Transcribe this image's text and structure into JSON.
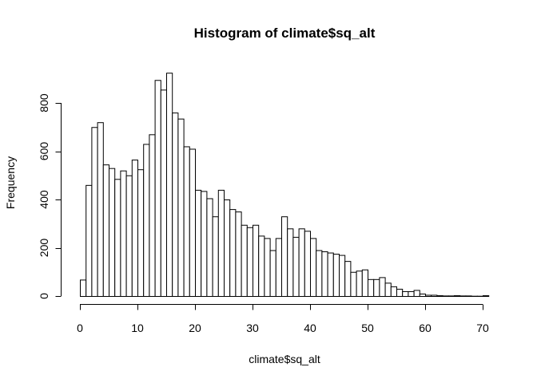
{
  "chart_data": {
    "type": "bar",
    "title": "Histogram of climate$sq_alt",
    "xlabel": "climate$sq_alt",
    "ylabel": "Frequency",
    "xlim": [
      0,
      71
    ],
    "ylim": [
      0,
      900
    ],
    "bin_width": 1,
    "x_ticks": [
      0,
      10,
      20,
      30,
      40,
      50,
      60,
      70
    ],
    "y_ticks": [
      0,
      200,
      400,
      600,
      800
    ],
    "bin_starts": [
      0,
      1,
      2,
      3,
      4,
      5,
      6,
      7,
      8,
      9,
      10,
      11,
      12,
      13,
      14,
      15,
      16,
      17,
      18,
      19,
      20,
      21,
      22,
      23,
      24,
      25,
      26,
      27,
      28,
      29,
      30,
      31,
      32,
      33,
      34,
      35,
      36,
      37,
      38,
      39,
      40,
      41,
      42,
      43,
      44,
      45,
      46,
      47,
      48,
      49,
      50,
      51,
      52,
      53,
      54,
      55,
      56,
      57,
      58,
      59,
      60,
      61,
      62,
      63,
      64,
      65,
      66,
      67,
      68,
      69,
      70
    ],
    "values": [
      68,
      460,
      700,
      720,
      545,
      530,
      485,
      520,
      500,
      565,
      525,
      630,
      670,
      895,
      855,
      925,
      760,
      735,
      620,
      610,
      440,
      435,
      405,
      330,
      440,
      400,
      360,
      350,
      295,
      285,
      295,
      250,
      240,
      190,
      240,
      330,
      280,
      245,
      280,
      270,
      240,
      190,
      185,
      180,
      175,
      170,
      145,
      100,
      105,
      110,
      70,
      70,
      78,
      55,
      40,
      30,
      20,
      20,
      25,
      10,
      5,
      5,
      3,
      2,
      2,
      3,
      2,
      2,
      1,
      1,
      3
    ],
    "grid": false,
    "legend": "none"
  }
}
